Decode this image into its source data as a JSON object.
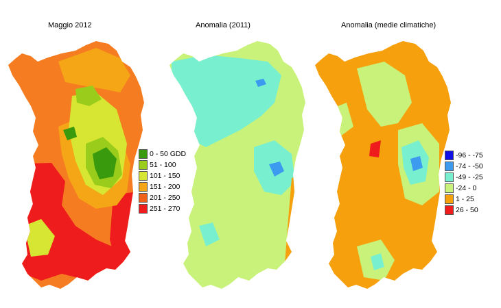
{
  "maps": [
    {
      "title": "Maggio 2012",
      "base_color": "#f57c21",
      "legend": [
        {
          "label": "0 - 50 GDD",
          "color": "#3a9a0d"
        },
        {
          "label": "51 - 100",
          "color": "#9acd1b"
        },
        {
          "label": "101 - 150",
          "color": "#d6e632"
        },
        {
          "label": "151 - 200",
          "color": "#f5a616"
        },
        {
          "label": "201 - 250",
          "color": "#f0611c"
        },
        {
          "label": "251 - 270",
          "color": "#ee1c1c"
        }
      ]
    },
    {
      "title": "Anomalia (2011)",
      "base_color": "#c9f27a",
      "legend": []
    },
    {
      "title": "Anomalia (medie climatiche)",
      "base_color": "#f5a00c",
      "legend": [
        {
          "label": "-96 - -75",
          "color": "#1010e6"
        },
        {
          "label": "-74 - -50",
          "color": "#3c9bef"
        },
        {
          "label": "-49 - -25",
          "color": "#78f0d0"
        },
        {
          "label": "-24 - 0",
          "color": "#c9f27a"
        },
        {
          "label": "1 - 25",
          "color": "#f5a00c"
        },
        {
          "label": "26 - 50",
          "color": "#ee1c1c"
        }
      ]
    }
  ]
}
